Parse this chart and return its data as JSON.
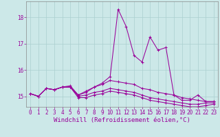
{
  "xlabel": "Windchill (Refroidissement éolien,°C)",
  "x": [
    0,
    1,
    2,
    3,
    4,
    5,
    6,
    7,
    8,
    9,
    10,
    11,
    12,
    13,
    14,
    15,
    16,
    17,
    18,
    19,
    20,
    21,
    22,
    23
  ],
  "series": [
    [
      15.1,
      15.0,
      15.3,
      15.25,
      15.35,
      15.4,
      15.05,
      15.15,
      15.35,
      15.5,
      15.75,
      18.3,
      17.65,
      16.55,
      16.3,
      17.25,
      16.75,
      16.85,
      15.05,
      14.85,
      14.85,
      15.05,
      14.8,
      14.8
    ],
    [
      15.1,
      15.0,
      15.3,
      15.25,
      15.35,
      15.35,
      15.05,
      15.2,
      15.35,
      15.45,
      15.6,
      15.55,
      15.5,
      15.45,
      15.3,
      15.25,
      15.15,
      15.1,
      15.05,
      14.95,
      14.9,
      14.85,
      14.8,
      14.8
    ],
    [
      15.1,
      15.0,
      15.3,
      15.25,
      15.35,
      15.35,
      15.0,
      15.05,
      15.15,
      15.2,
      15.3,
      15.25,
      15.2,
      15.15,
      15.05,
      14.95,
      14.9,
      14.85,
      14.8,
      14.75,
      14.7,
      14.7,
      14.75,
      14.75
    ],
    [
      15.1,
      15.0,
      15.3,
      15.25,
      15.35,
      15.35,
      14.95,
      14.95,
      15.05,
      15.1,
      15.2,
      15.15,
      15.1,
      15.05,
      14.95,
      14.85,
      14.8,
      14.75,
      14.7,
      14.65,
      14.6,
      14.6,
      14.65,
      14.7
    ]
  ],
  "line_color": "#990099",
  "bg_color": "#cce8e8",
  "grid_color": "#aacfcf",
  "ylim": [
    14.6,
    18.6
  ],
  "xlim": [
    -0.5,
    23.5
  ],
  "yticks": [
    15,
    16,
    17,
    18
  ],
  "xticks": [
    0,
    1,
    2,
    3,
    4,
    5,
    6,
    7,
    8,
    9,
    10,
    11,
    12,
    13,
    14,
    15,
    16,
    17,
    18,
    19,
    20,
    21,
    22,
    23
  ],
  "tick_fontsize": 5.5,
  "xlabel_fontsize": 6.5
}
